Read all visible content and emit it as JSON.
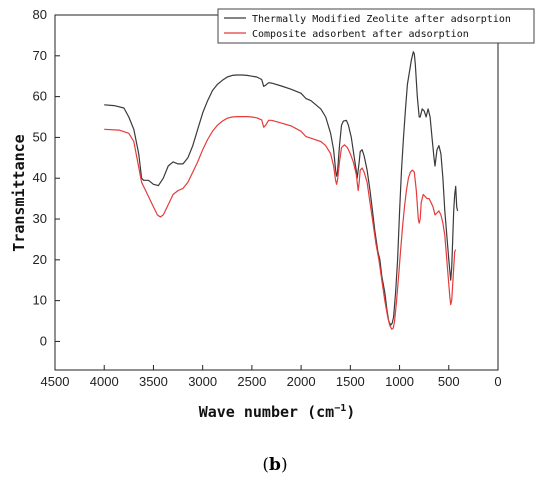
{
  "caption": {
    "open": "(",
    "letter": "b",
    "close": ")"
  },
  "chart_data": {
    "type": "line",
    "xlabel": "Wave number (cm",
    "xlabel_sup": "−1",
    "xlabel_close": ")",
    "ylabel": "Transmittance",
    "xlim": [
      4500,
      0
    ],
    "ylim": [
      -7,
      80
    ],
    "x_ticks": [
      4500,
      4000,
      3500,
      3000,
      2500,
      2000,
      1500,
      1000,
      500,
      0
    ],
    "y_ticks": [
      0,
      10,
      20,
      30,
      40,
      50,
      60,
      70,
      80
    ],
    "legend_position": "top-right",
    "series": [
      {
        "name": "Thermally Modified Zeolite after adsorption",
        "color": "#3a3a3a",
        "points": [
          [
            4000,
            58
          ],
          [
            3900,
            57.8
          ],
          [
            3800,
            57.2
          ],
          [
            3750,
            55
          ],
          [
            3700,
            52
          ],
          [
            3650,
            46
          ],
          [
            3620,
            40
          ],
          [
            3600,
            39.5
          ],
          [
            3550,
            39.5
          ],
          [
            3500,
            38.5
          ],
          [
            3450,
            38.2
          ],
          [
            3400,
            40
          ],
          [
            3350,
            43
          ],
          [
            3300,
            44
          ],
          [
            3250,
            43.5
          ],
          [
            3200,
            43.5
          ],
          [
            3150,
            45
          ],
          [
            3100,
            48
          ],
          [
            3050,
            52
          ],
          [
            3000,
            56
          ],
          [
            2950,
            59
          ],
          [
            2900,
            61.5
          ],
          [
            2850,
            63
          ],
          [
            2800,
            64
          ],
          [
            2750,
            64.8
          ],
          [
            2700,
            65.2
          ],
          [
            2650,
            65.3
          ],
          [
            2600,
            65.3
          ],
          [
            2550,
            65.2
          ],
          [
            2500,
            65
          ],
          [
            2450,
            64.8
          ],
          [
            2400,
            64.2
          ],
          [
            2380,
            62.5
          ],
          [
            2360,
            62.8
          ],
          [
            2330,
            63.4
          ],
          [
            2300,
            63.3
          ],
          [
            2200,
            62.6
          ],
          [
            2100,
            61.8
          ],
          [
            2000,
            60.8
          ],
          [
            1950,
            59.5
          ],
          [
            1900,
            59
          ],
          [
            1850,
            58
          ],
          [
            1800,
            57
          ],
          [
            1750,
            55
          ],
          [
            1700,
            51
          ],
          [
            1670,
            47
          ],
          [
            1650,
            42
          ],
          [
            1640,
            40.5
          ],
          [
            1630,
            41.5
          ],
          [
            1610,
            48
          ],
          [
            1590,
            53
          ],
          [
            1570,
            54
          ],
          [
            1540,
            54.2
          ],
          [
            1520,
            53
          ],
          [
            1490,
            50
          ],
          [
            1460,
            45
          ],
          [
            1440,
            42
          ],
          [
            1430,
            40
          ],
          [
            1410,
            44
          ],
          [
            1400,
            46.5
          ],
          [
            1380,
            47
          ],
          [
            1360,
            45.5
          ],
          [
            1330,
            42
          ],
          [
            1300,
            37
          ],
          [
            1280,
            33
          ],
          [
            1250,
            27
          ],
          [
            1220,
            22
          ],
          [
            1200,
            20
          ],
          [
            1180,
            16
          ],
          [
            1150,
            12
          ],
          [
            1130,
            8
          ],
          [
            1110,
            5
          ],
          [
            1090,
            4
          ],
          [
            1075,
            4.5
          ],
          [
            1060,
            6
          ],
          [
            1040,
            12
          ],
          [
            1020,
            20
          ],
          [
            1000,
            32
          ],
          [
            980,
            42
          ],
          [
            960,
            50
          ],
          [
            940,
            57
          ],
          [
            920,
            63
          ],
          [
            900,
            66
          ],
          [
            880,
            69
          ],
          [
            860,
            71
          ],
          [
            850,
            70.5
          ],
          [
            840,
            68
          ],
          [
            820,
            60
          ],
          [
            800,
            55
          ],
          [
            790,
            55
          ],
          [
            770,
            57
          ],
          [
            750,
            56.5
          ],
          [
            730,
            55
          ],
          [
            710,
            57
          ],
          [
            690,
            55
          ],
          [
            670,
            50
          ],
          [
            650,
            45
          ],
          [
            640,
            43
          ],
          [
            620,
            47
          ],
          [
            600,
            48
          ],
          [
            580,
            46
          ],
          [
            560,
            40
          ],
          [
            540,
            32
          ],
          [
            520,
            26
          ],
          [
            500,
            20
          ],
          [
            480,
            15
          ],
          [
            470,
            18
          ],
          [
            460,
            25
          ],
          [
            450,
            32
          ],
          [
            440,
            36
          ],
          [
            430,
            38
          ],
          [
            420,
            33
          ],
          [
            410,
            32
          ]
        ]
      },
      {
        "name": "Composite adsorbent after adsorption",
        "color": "#e53b3b",
        "points": [
          [
            4000,
            52
          ],
          [
            3850,
            51.8
          ],
          [
            3750,
            51
          ],
          [
            3700,
            49
          ],
          [
            3660,
            44
          ],
          [
            3620,
            39
          ],
          [
            3580,
            37
          ],
          [
            3540,
            35
          ],
          [
            3500,
            33
          ],
          [
            3460,
            31
          ],
          [
            3430,
            30.5
          ],
          [
            3400,
            31
          ],
          [
            3350,
            33.5
          ],
          [
            3300,
            36
          ],
          [
            3250,
            37
          ],
          [
            3200,
            37.5
          ],
          [
            3150,
            39
          ],
          [
            3100,
            41.5
          ],
          [
            3050,
            44
          ],
          [
            3000,
            47
          ],
          [
            2950,
            49.5
          ],
          [
            2900,
            51.5
          ],
          [
            2850,
            53
          ],
          [
            2800,
            54
          ],
          [
            2750,
            54.7
          ],
          [
            2700,
            55
          ],
          [
            2650,
            55.1
          ],
          [
            2600,
            55.1
          ],
          [
            2550,
            55.1
          ],
          [
            2500,
            55
          ],
          [
            2450,
            54.8
          ],
          [
            2400,
            54.3
          ],
          [
            2380,
            52.5
          ],
          [
            2360,
            53
          ],
          [
            2330,
            54.2
          ],
          [
            2300,
            54.2
          ],
          [
            2200,
            53.5
          ],
          [
            2100,
            52.8
          ],
          [
            2000,
            51.5
          ],
          [
            1950,
            50.2
          ],
          [
            1900,
            49.8
          ],
          [
            1850,
            49.4
          ],
          [
            1800,
            49
          ],
          [
            1750,
            48
          ],
          [
            1700,
            46
          ],
          [
            1670,
            43
          ],
          [
            1650,
            39.5
          ],
          [
            1640,
            38.5
          ],
          [
            1630,
            39.5
          ],
          [
            1610,
            44
          ],
          [
            1590,
            47.5
          ],
          [
            1560,
            48.2
          ],
          [
            1530,
            47.5
          ],
          [
            1500,
            46
          ],
          [
            1470,
            44
          ],
          [
            1440,
            41
          ],
          [
            1420,
            37
          ],
          [
            1410,
            39
          ],
          [
            1400,
            42
          ],
          [
            1380,
            42.5
          ],
          [
            1360,
            41.5
          ],
          [
            1330,
            39
          ],
          [
            1300,
            34
          ],
          [
            1270,
            29
          ],
          [
            1240,
            24
          ],
          [
            1210,
            20
          ],
          [
            1180,
            15
          ],
          [
            1150,
            10
          ],
          [
            1120,
            6
          ],
          [
            1100,
            4
          ],
          [
            1080,
            3
          ],
          [
            1065,
            3.2
          ],
          [
            1050,
            5
          ],
          [
            1030,
            10
          ],
          [
            1010,
            16
          ],
          [
            990,
            22
          ],
          [
            970,
            28
          ],
          [
            950,
            33
          ],
          [
            930,
            37
          ],
          [
            910,
            40
          ],
          [
            890,
            41.5
          ],
          [
            870,
            42
          ],
          [
            850,
            41.5
          ],
          [
            830,
            37
          ],
          [
            810,
            30
          ],
          [
            800,
            29
          ],
          [
            790,
            30
          ],
          [
            780,
            34
          ],
          [
            760,
            36
          ],
          [
            740,
            35.5
          ],
          [
            720,
            35
          ],
          [
            700,
            35
          ],
          [
            680,
            34
          ],
          [
            660,
            33
          ],
          [
            640,
            31
          ],
          [
            620,
            31.5
          ],
          [
            600,
            32
          ],
          [
            580,
            31
          ],
          [
            560,
            29
          ],
          [
            540,
            26
          ],
          [
            520,
            20
          ],
          [
            500,
            14
          ],
          [
            490,
            11
          ],
          [
            480,
            9
          ],
          [
            470,
            10
          ],
          [
            460,
            14
          ],
          [
            450,
            18
          ],
          [
            440,
            22
          ],
          [
            430,
            22.5
          ]
        ]
      }
    ]
  }
}
